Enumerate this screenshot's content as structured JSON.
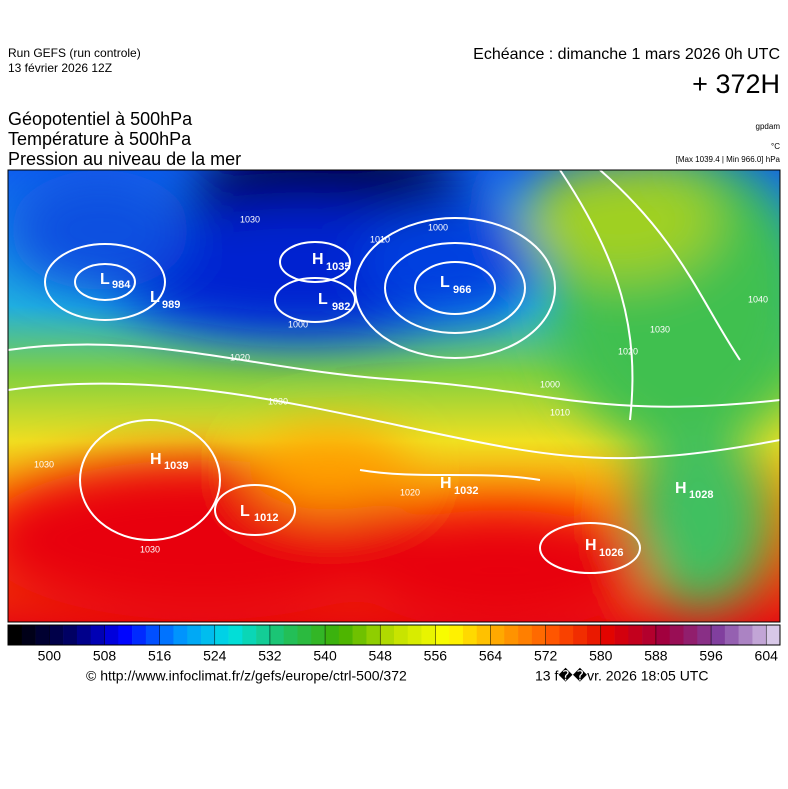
{
  "header": {
    "run": "Run GEFS (run controle)",
    "run_date": "13 février 2026 12Z",
    "valid": "Echéance : dimanche 1 mars 2026 0h UTC",
    "lead": "+ 372H"
  },
  "titles": [
    "Géopotentiel à 500hPa",
    "Température à 500hPa",
    "Pression au niveau de la mer"
  ],
  "units": [
    "gpdam",
    "°C",
    "[Max 1039.4 | Min 966.0] hPa"
  ],
  "map": {
    "centers": [
      {
        "kind": "L",
        "value": "984"
      },
      {
        "kind": "L",
        "value": "989"
      },
      {
        "kind": "H",
        "value": "1035"
      },
      {
        "kind": "L",
        "value": "982"
      },
      {
        "kind": "L",
        "value": "966"
      },
      {
        "kind": "H",
        "value": "1039"
      },
      {
        "kind": "L",
        "value": "1012"
      },
      {
        "kind": "H",
        "value": "1032"
      },
      {
        "kind": "H",
        "value": "1028"
      },
      {
        "kind": "H",
        "value": "1026"
      }
    ],
    "contour_labels": [
      "1030",
      "1010",
      "1000",
      "1020",
      "1030",
      "1030",
      "1030",
      "1000",
      "1040",
      "1030",
      "1020",
      "1000",
      "1010",
      "1020"
    ]
  },
  "colorbar": {
    "lim": [
      494,
      606
    ],
    "ticks": [
      500,
      508,
      516,
      524,
      532,
      540,
      548,
      556,
      564,
      572,
      580,
      588,
      596,
      604
    ]
  },
  "footer": {
    "url": "© http://www.infoclimat.fr/z/gefs/europe/ctrl-500/372",
    "date": "13 f��vr. 2026 18:05 UTC"
  }
}
